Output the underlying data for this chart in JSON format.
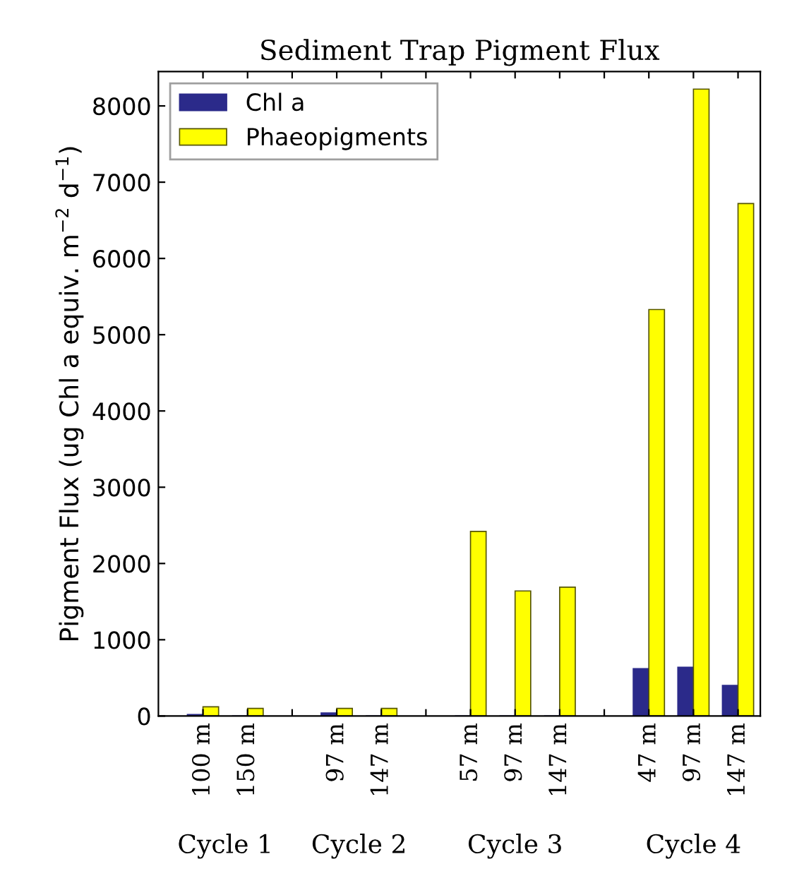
{
  "chart_data": {
    "type": "bar",
    "title": "Sediment Trap Pigment Flux",
    "ylabel": "Pigment Flux (ug Chl a equiv. m$^{−2}$ d$^{−1}$)",
    "categories": [
      "100 m",
      "150 m",
      null,
      "97 m",
      "147 m",
      null,
      "57 m",
      "97 m",
      "147 m",
      null,
      "47 m",
      "97 m",
      "147 m"
    ],
    "series": [
      {
        "name": "Chl a",
        "color": "#2b2a8a",
        "values": [
          20,
          0,
          null,
          40,
          0,
          null,
          0,
          0,
          0,
          null,
          620,
          640,
          400
        ]
      },
      {
        "name": "Phaeopigments",
        "color": "#ffff00",
        "values": [
          120,
          100,
          null,
          100,
          100,
          null,
          2420,
          1640,
          1690,
          null,
          5330,
          8220,
          6720
        ]
      }
    ],
    "ylim": [
      0,
      8450
    ],
    "yticks": [
      0,
      1000,
      2000,
      3000,
      4000,
      5000,
      6000,
      7000,
      8000
    ],
    "legend": "top left",
    "grid": false,
    "annotations": [
      "Cycle 1",
      "Cycle 2",
      "Cycle 3",
      "Cycle 4"
    ]
  }
}
